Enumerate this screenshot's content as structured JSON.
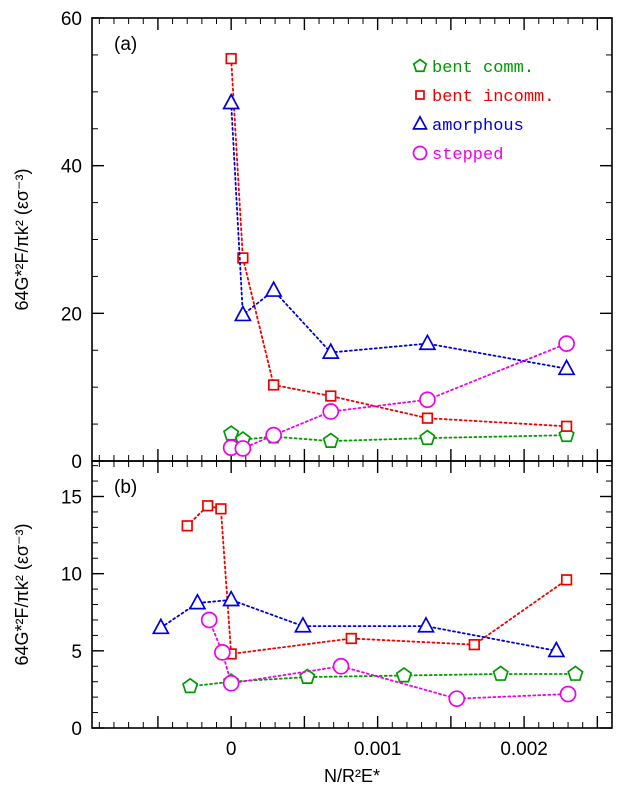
{
  "chart_data": [
    {
      "panel_label": "(a)",
      "type": "line",
      "ylabel": "64G*²F/πk² (εσ⁻³)",
      "xlim": [
        -0.00095,
        0.0026
      ],
      "ylim": [
        0,
        60
      ],
      "yticks": [
        0,
        20,
        40,
        60
      ],
      "grid": false,
      "legend": "top-right",
      "series": [
        {
          "name": "bent comm.",
          "marker": "pentagon",
          "color": "#009900",
          "x": [
            0.0,
            8e-05,
            0.00029,
            0.00068,
            0.00134,
            0.00229
          ],
          "y": [
            3.7,
            2.9,
            3.3,
            2.7,
            3.1,
            3.5
          ]
        },
        {
          "name": "bent incomm.",
          "marker": "square",
          "color": "#ee0000",
          "x": [
            0.0,
            8e-05,
            0.00029,
            0.00068,
            0.00134,
            0.00229
          ],
          "y": [
            54.5,
            27.5,
            10.3,
            8.8,
            5.8,
            4.7
          ]
        },
        {
          "name": "amorphous",
          "marker": "triangle",
          "color": "#0000dd",
          "x": [
            0.0,
            8e-05,
            0.00029,
            0.00068,
            0.00134,
            0.00229
          ],
          "y": [
            48.5,
            19.8,
            23.1,
            14.7,
            15.9,
            12.5
          ]
        },
        {
          "name": "stepped",
          "marker": "circle",
          "color": "#ee00ee",
          "x": [
            0.0,
            8e-05,
            0.00029,
            0.00068,
            0.00134,
            0.00229
          ],
          "y": [
            1.8,
            1.7,
            3.5,
            6.7,
            8.3,
            15.9
          ]
        }
      ]
    },
    {
      "panel_label": "(b)",
      "type": "line",
      "xlabel": "N/R²E*",
      "ylabel": "64G*²F/πk² (εσ⁻³)",
      "xlim": [
        -0.00095,
        0.0026
      ],
      "ylim": [
        0,
        17.3
      ],
      "yticks": [
        0,
        5,
        10,
        15
      ],
      "xticks": [
        "0",
        "0.001",
        "0.002"
      ],
      "xtick_values": [
        0,
        0.001,
        0.002
      ],
      "grid": false,
      "series": [
        {
          "name": "bent comm.",
          "marker": "pentagon",
          "color": "#009900",
          "x": [
            -0.00028,
            0.0,
            0.00052,
            0.00118,
            0.00184,
            0.00235
          ],
          "y": [
            2.7,
            3.0,
            3.3,
            3.4,
            3.5,
            3.5
          ]
        },
        {
          "name": "bent incomm.",
          "marker": "square",
          "color": "#ee0000",
          "x": [
            -0.0003,
            -0.00016,
            -7e-05,
            0.0,
            0.00082,
            0.00166,
            0.00229
          ],
          "y": [
            13.1,
            14.4,
            14.2,
            4.8,
            5.8,
            5.4,
            9.6
          ]
        },
        {
          "name": "amorphous",
          "marker": "triangle",
          "color": "#0000dd",
          "x": [
            -0.00048,
            -0.00023,
            0.0,
            0.00049,
            0.00133,
            0.00222
          ],
          "y": [
            6.5,
            8.1,
            8.3,
            6.6,
            6.6,
            5.0
          ]
        },
        {
          "name": "stepped",
          "marker": "circle",
          "color": "#ee00ee",
          "x": [
            -0.00015,
            -6e-05,
            0.0,
            0.00075,
            0.00154,
            0.0023
          ],
          "y": [
            7.0,
            4.9,
            2.9,
            4.0,
            1.9,
            2.2
          ]
        }
      ]
    }
  ]
}
